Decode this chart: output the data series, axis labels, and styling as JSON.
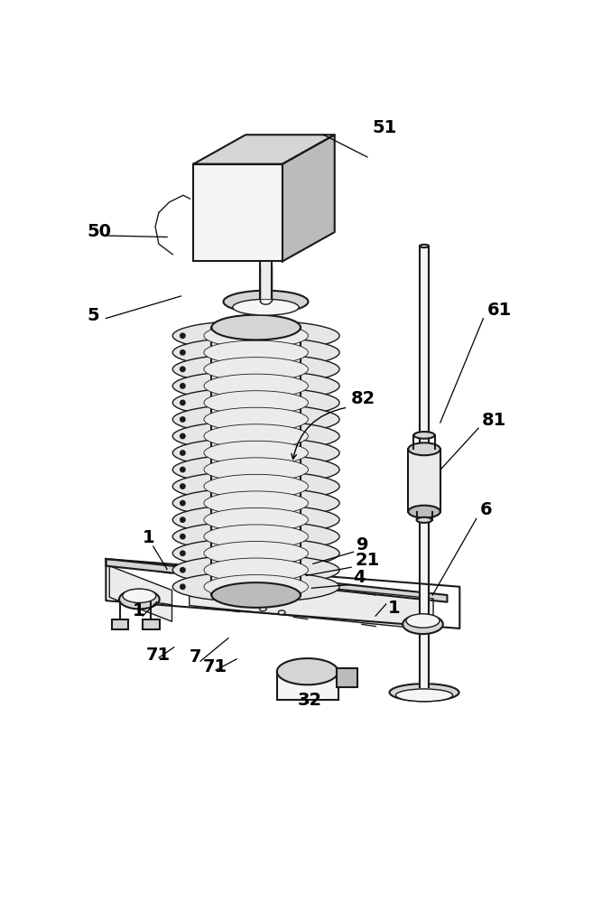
{
  "bg": "#ffffff",
  "lc": "#1a1a1a",
  "lc_thin": "#333333",
  "fc_lightest": "#f5f5f5",
  "fc_light": "#ebebeb",
  "fc_mid": "#d5d5d5",
  "fc_dark": "#bbbbbb",
  "fc_darkest": "#999999",
  "figsize": [
    6.67,
    10.0
  ],
  "dpi": 100,
  "label_fs": 14
}
